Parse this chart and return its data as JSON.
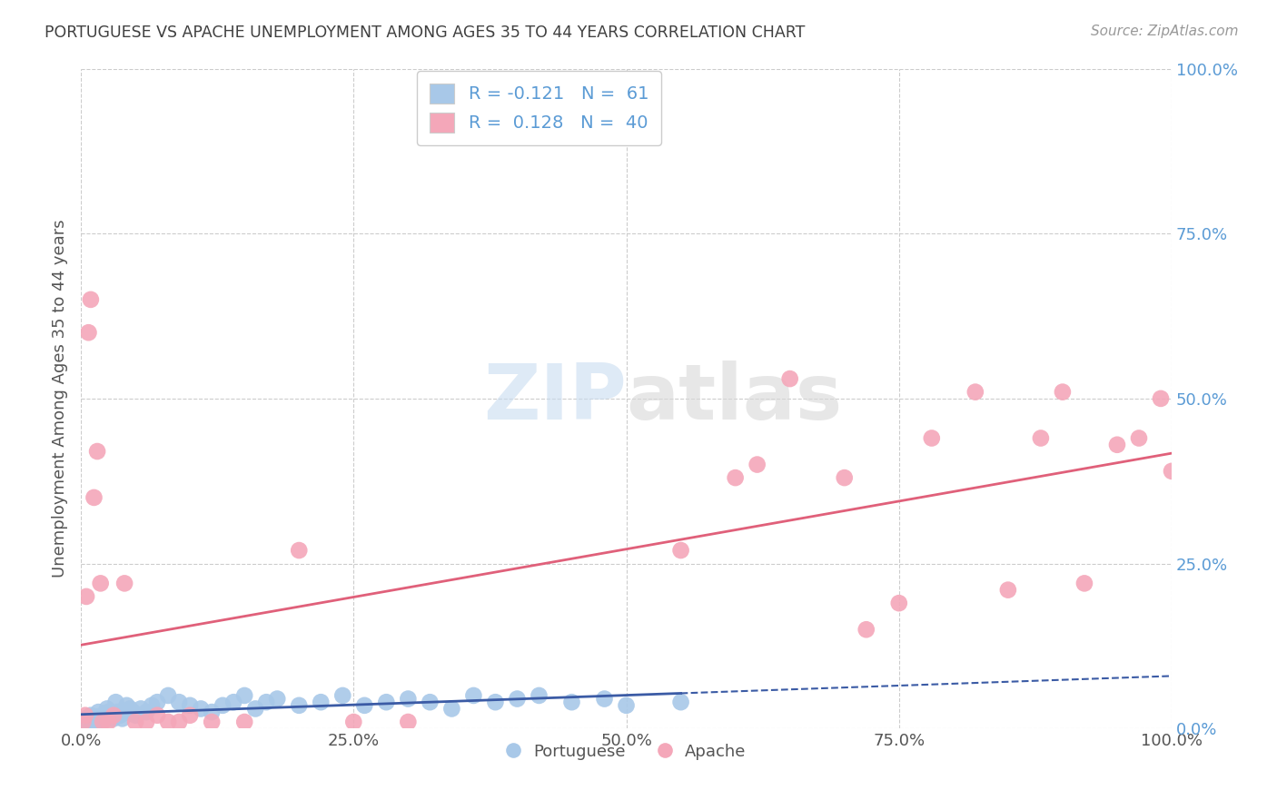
{
  "title": "PORTUGUESE VS APACHE UNEMPLOYMENT AMONG AGES 35 TO 44 YEARS CORRELATION CHART",
  "source": "Source: ZipAtlas.com",
  "ylabel": "Unemployment Among Ages 35 to 44 years",
  "xlabel": "",
  "xlim": [
    0,
    1.0
  ],
  "ylim": [
    0,
    1.0
  ],
  "xticks": [
    0.0,
    0.25,
    0.5,
    0.75,
    1.0
  ],
  "yticks": [
    0.0,
    0.25,
    0.5,
    0.75,
    1.0
  ],
  "xticklabels": [
    "0.0%",
    "25.0%",
    "50.0%",
    "75.0%",
    "100.0%"
  ],
  "yticklabels": [
    "0.0%",
    "25.0%",
    "50.0%",
    "75.0%",
    "100.0%"
  ],
  "R_portuguese": -0.121,
  "N_portuguese": 61,
  "R_apache": 0.128,
  "N_apache": 40,
  "blue_color": "#A8C8E8",
  "pink_color": "#F4A7B9",
  "blue_line_color": "#3B5BA5",
  "pink_line_color": "#E0607A",
  "background_color": "#ffffff",
  "grid_color": "#cccccc",
  "title_color": "#404040",
  "portuguese_x": [
    0.002,
    0.004,
    0.005,
    0.006,
    0.008,
    0.009,
    0.01,
    0.011,
    0.012,
    0.013,
    0.015,
    0.016,
    0.018,
    0.019,
    0.02,
    0.022,
    0.024,
    0.025,
    0.027,
    0.028,
    0.03,
    0.032,
    0.034,
    0.036,
    0.038,
    0.04,
    0.042,
    0.045,
    0.048,
    0.05,
    0.055,
    0.06,
    0.065,
    0.07,
    0.08,
    0.09,
    0.1,
    0.11,
    0.12,
    0.13,
    0.14,
    0.15,
    0.16,
    0.17,
    0.18,
    0.2,
    0.22,
    0.24,
    0.26,
    0.28,
    0.3,
    0.32,
    0.34,
    0.36,
    0.38,
    0.4,
    0.42,
    0.45,
    0.48,
    0.5,
    0.55
  ],
  "portuguese_y": [
    0.01,
    0.015,
    0.008,
    0.01,
    0.012,
    0.02,
    0.015,
    0.01,
    0.008,
    0.018,
    0.012,
    0.025,
    0.015,
    0.01,
    0.02,
    0.015,
    0.03,
    0.025,
    0.015,
    0.02,
    0.015,
    0.04,
    0.025,
    0.02,
    0.015,
    0.025,
    0.035,
    0.03,
    0.025,
    0.02,
    0.03,
    0.025,
    0.035,
    0.04,
    0.05,
    0.04,
    0.035,
    0.03,
    0.025,
    0.035,
    0.04,
    0.05,
    0.03,
    0.04,
    0.045,
    0.035,
    0.04,
    0.05,
    0.035,
    0.04,
    0.045,
    0.04,
    0.03,
    0.05,
    0.04,
    0.045,
    0.05,
    0.04,
    0.045,
    0.035,
    0.04
  ],
  "apache_x": [
    0.002,
    0.004,
    0.005,
    0.007,
    0.009,
    0.012,
    0.015,
    0.018,
    0.02,
    0.025,
    0.03,
    0.04,
    0.05,
    0.06,
    0.07,
    0.08,
    0.09,
    0.1,
    0.12,
    0.15,
    0.2,
    0.25,
    0.3,
    0.55,
    0.6,
    0.62,
    0.65,
    0.7,
    0.72,
    0.75,
    0.78,
    0.82,
    0.85,
    0.88,
    0.9,
    0.92,
    0.95,
    0.97,
    0.99,
    1.0
  ],
  "apache_y": [
    0.01,
    0.02,
    0.2,
    0.6,
    0.65,
    0.35,
    0.42,
    0.22,
    0.01,
    0.01,
    0.02,
    0.22,
    0.01,
    0.01,
    0.02,
    0.01,
    0.01,
    0.02,
    0.01,
    0.01,
    0.27,
    0.01,
    0.01,
    0.27,
    0.38,
    0.4,
    0.53,
    0.38,
    0.15,
    0.19,
    0.44,
    0.51,
    0.21,
    0.44,
    0.51,
    0.22,
    0.43,
    0.44,
    0.5,
    0.39
  ]
}
